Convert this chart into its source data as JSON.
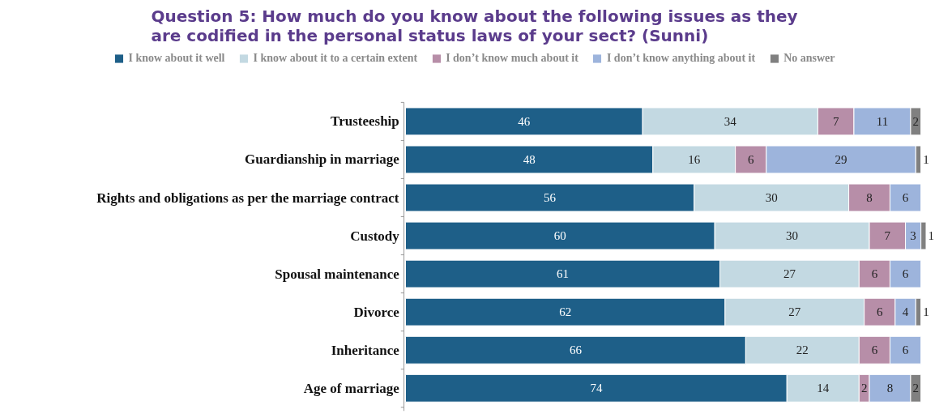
{
  "chart_data": {
    "type": "bar",
    "title": "Question 5: How much do you know about the following issues as they\nare codified in the personal status laws of your sect? (Sunni)",
    "orientation": "horizontal",
    "stacked": true,
    "data_labels": true,
    "legend": "top",
    "grid": false,
    "tick_labels": "y",
    "categories": [
      "Trusteeship",
      "Guardianship in marriage",
      "Rights and obligations as per the marriage contract",
      "Custody",
      "Spousal maintenance",
      "Divorce",
      "Inheritance",
      "Age of marriage"
    ],
    "series": [
      {
        "name": "I know about it well",
        "color": "#1e5f88",
        "values": [
          46,
          48,
          56,
          60,
          61,
          62,
          66,
          74
        ]
      },
      {
        "name": "I know about it to a certain extent",
        "color": "#c3d9e2",
        "values": [
          34,
          16,
          30,
          30,
          27,
          27,
          22,
          14
        ]
      },
      {
        "name": "I don’t know much about it",
        "color": "#b78ea8",
        "values": [
          7,
          6,
          8,
          7,
          6,
          6,
          6,
          2
        ]
      },
      {
        "name": "I don’t know anything about it",
        "color": "#9db4dc",
        "values": [
          11,
          29,
          6,
          3,
          6,
          4,
          6,
          8
        ]
      },
      {
        "name": "No answer",
        "color": "#808080",
        "values": [
          2,
          1,
          null,
          1,
          null,
          1,
          null,
          2
        ]
      }
    ]
  }
}
